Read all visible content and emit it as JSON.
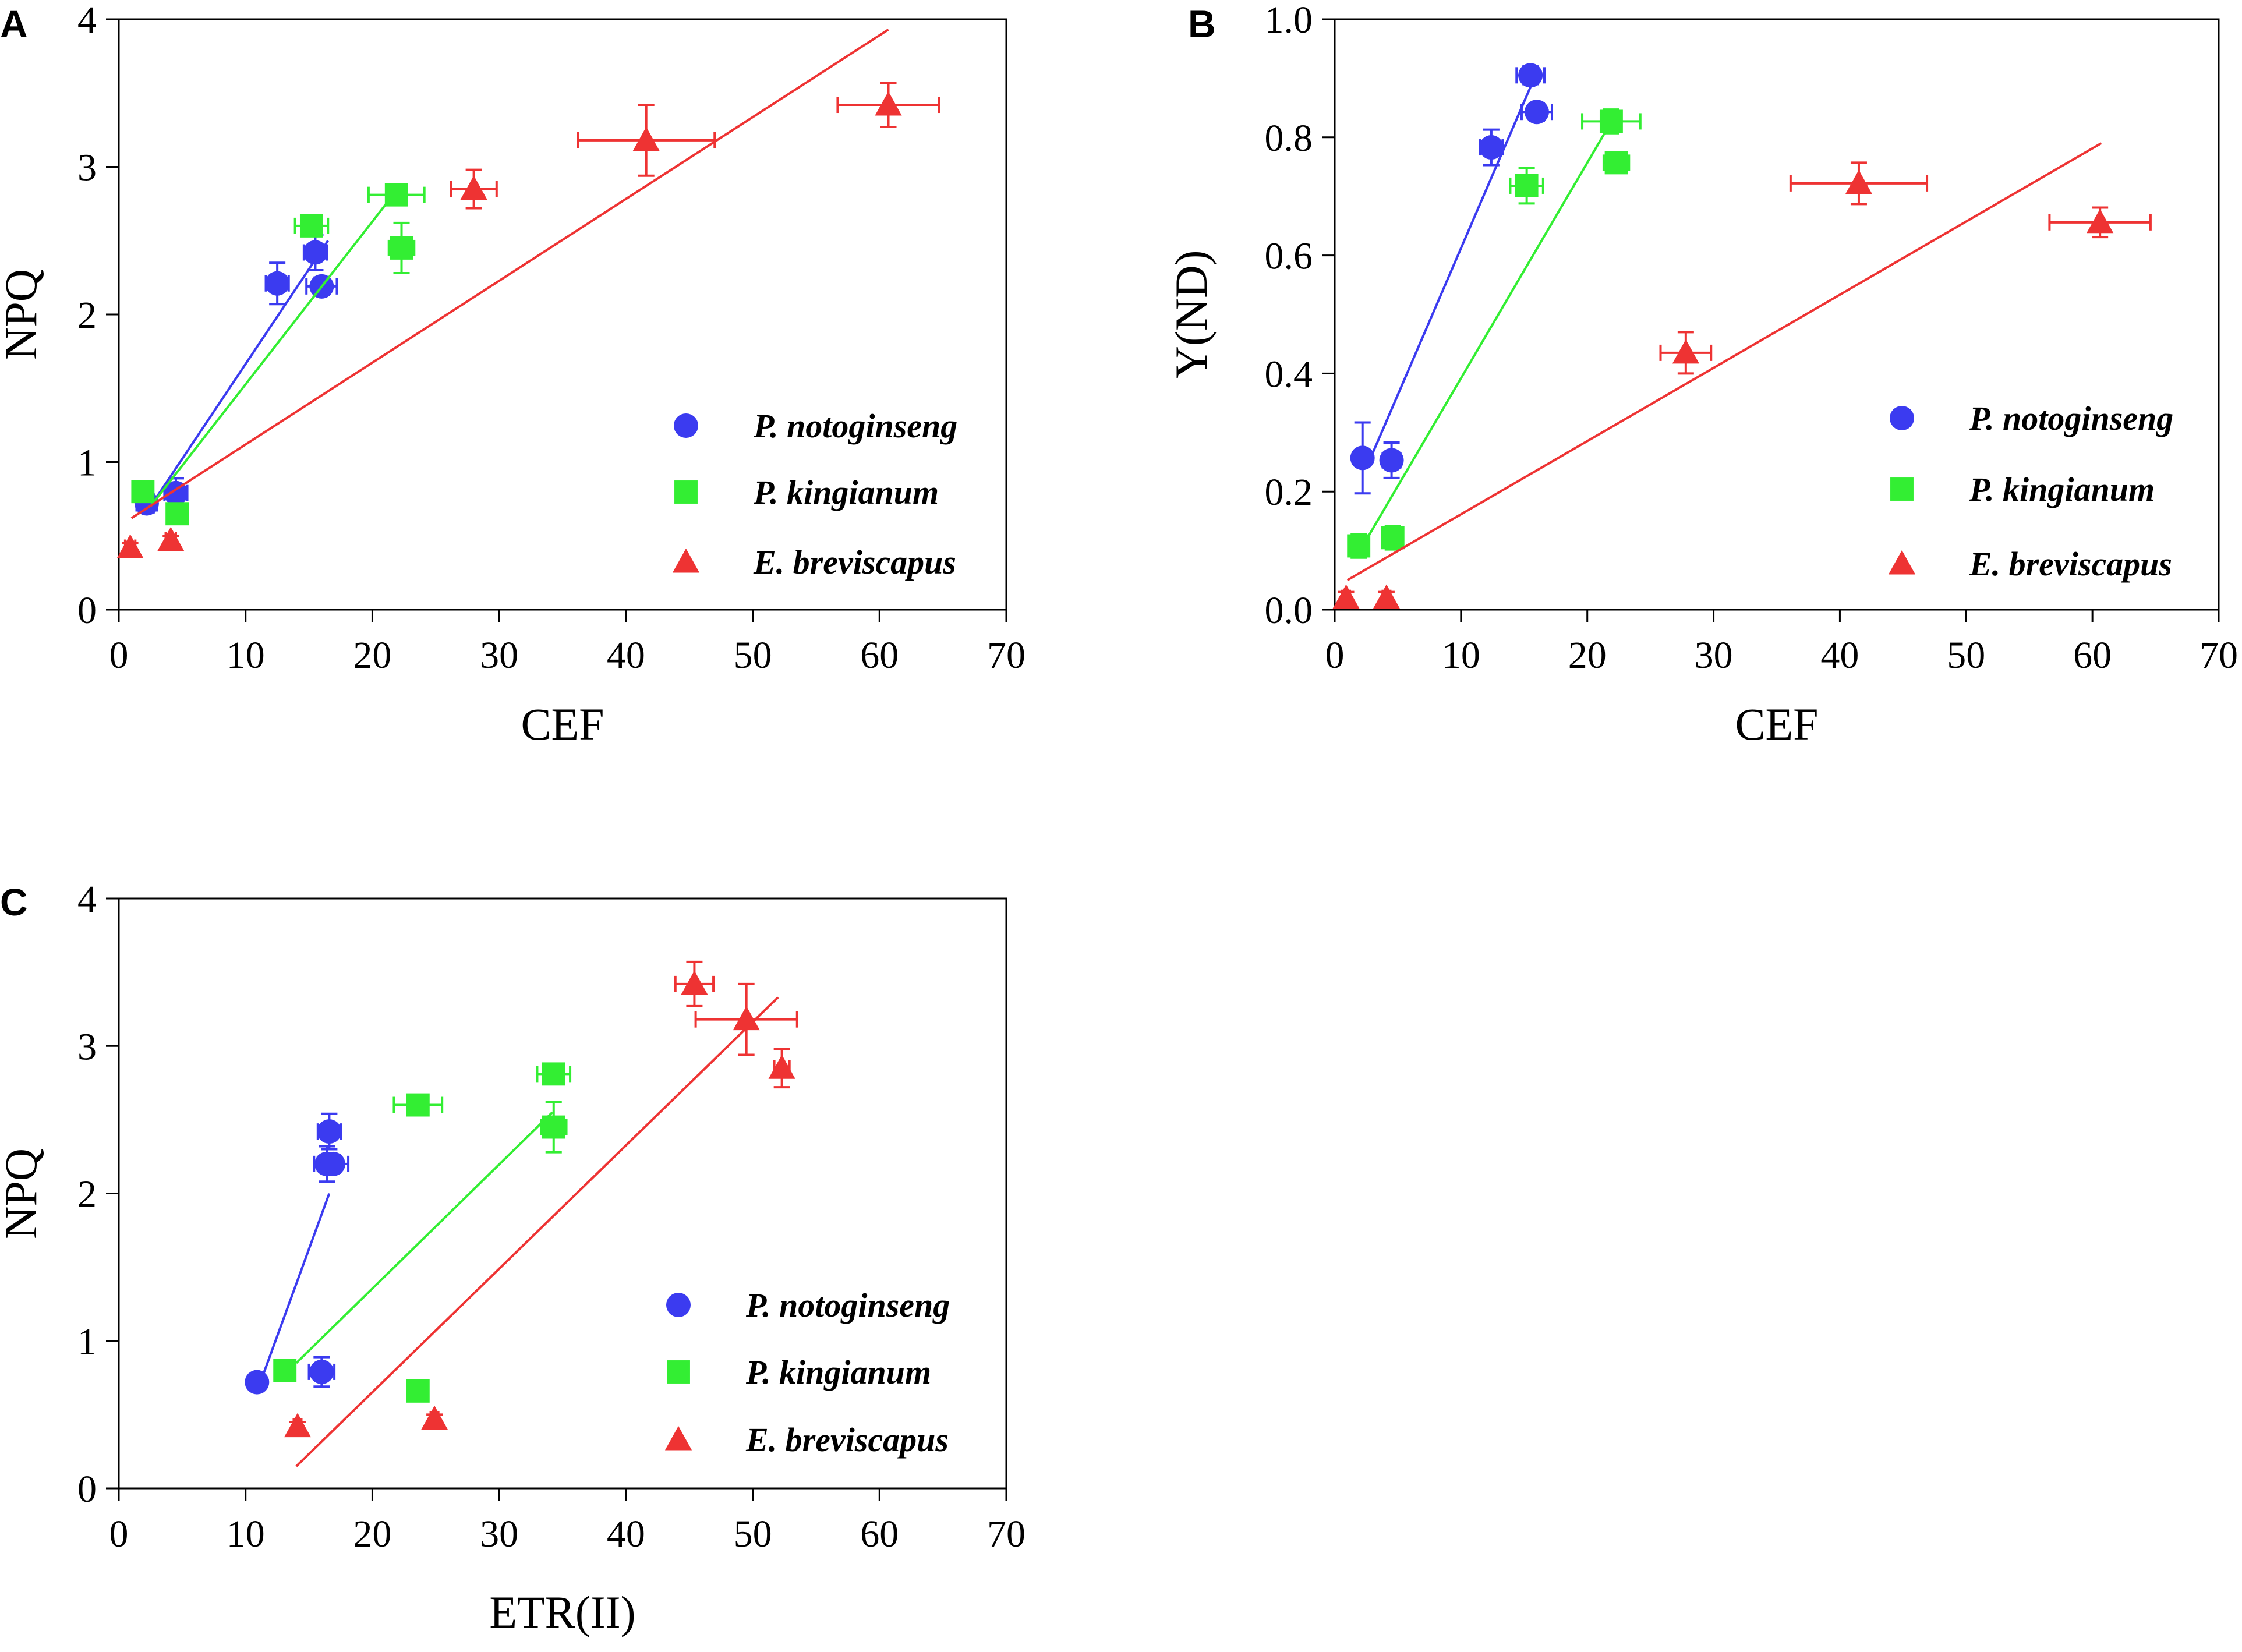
{
  "chart_data": [
    {
      "panel": "A",
      "type": "scatter",
      "xlabel": "CEF",
      "ylabel": "NPQ",
      "xlim": [
        0,
        70
      ],
      "ylim": [
        0,
        4
      ],
      "xticks": [
        0,
        10,
        20,
        30,
        40,
        50,
        60,
        70
      ],
      "yticks": [
        0,
        1,
        2,
        3,
        4
      ],
      "ytick_labels": [
        "0",
        "1",
        "2",
        "3",
        "4"
      ],
      "legend_position": "bottom-right",
      "series": [
        {
          "name": "P. notoginseng",
          "color": "#3b3bf0",
          "marker": "circle",
          "points": [
            {
              "x": 2.2,
              "y": 0.72,
              "xerr": 0.8,
              "yerr": 0.06
            },
            {
              "x": 4.5,
              "y": 0.79,
              "xerr": 0.9,
              "yerr": 0.1
            },
            {
              "x": 12.5,
              "y": 2.21,
              "xerr": 0.9,
              "yerr": 0.14
            },
            {
              "x": 15.5,
              "y": 2.42,
              "xerr": 0.9,
              "yerr": 0.12
            },
            {
              "x": 16.0,
              "y": 2.19,
              "xerr": 1.2,
              "yerr": 0.06
            }
          ],
          "fit": {
            "x": [
              2.5,
              16.5
            ],
            "y": [
              0.7,
              2.5
            ]
          }
        },
        {
          "name": "P. kingianum",
          "color": "#33ee33",
          "marker": "square",
          "points": [
            {
              "x": 1.9,
              "y": 0.8,
              "xerr": 0.6,
              "yerr": 0.05
            },
            {
              "x": 4.6,
              "y": 0.65,
              "xerr": 0.6,
              "yerr": 0.05
            },
            {
              "x": 15.2,
              "y": 2.6,
              "xerr": 1.3,
              "yerr": 0.06
            },
            {
              "x": 21.9,
              "y": 2.81,
              "xerr": 2.2,
              "yerr": 0.05
            },
            {
              "x": 22.3,
              "y": 2.45,
              "xerr": 1.0,
              "yerr": 0.17
            }
          ],
          "fit": {
            "x": [
              2.5,
              22.0
            ],
            "y": [
              0.7,
              2.85
            ]
          }
        },
        {
          "name": "E. breviscapus",
          "color": "#ee3333",
          "marker": "triangle",
          "points": [
            {
              "x": 0.9,
              "y": 0.42,
              "xerr": 0.4,
              "yerr": 0.03
            },
            {
              "x": 4.1,
              "y": 0.47,
              "xerr": 0.4,
              "yerr": 0.03
            },
            {
              "x": 28.0,
              "y": 2.85,
              "xerr": 1.8,
              "yerr": 0.13
            },
            {
              "x": 41.6,
              "y": 3.18,
              "xerr": 5.4,
              "yerr": 0.24
            },
            {
              "x": 60.7,
              "y": 3.42,
              "xerr": 4.0,
              "yerr": 0.15
            }
          ],
          "fit": {
            "x": [
              1.0,
              60.7
            ],
            "y": [
              0.62,
              3.93
            ]
          }
        }
      ]
    },
    {
      "panel": "B",
      "type": "scatter",
      "xlabel": "CEF",
      "ylabel": "Y(ND)",
      "xlim": [
        0,
        70
      ],
      "ylim": [
        0,
        1.0
      ],
      "xticks": [
        0,
        10,
        20,
        30,
        40,
        50,
        60,
        70
      ],
      "yticks": [
        0,
        0.2,
        0.4,
        0.6,
        0.8,
        1.0
      ],
      "ytick_labels": [
        "0.0",
        "0.2",
        "0.4",
        "0.6",
        "0.8",
        "1.0"
      ],
      "legend_position": "bottom-right",
      "series": [
        {
          "name": "P. notoginseng",
          "color": "#3b3bf0",
          "marker": "circle",
          "points": [
            {
              "x": 2.2,
              "y": 0.257,
              "xerr": 0.5,
              "yerr": 0.06
            },
            {
              "x": 4.5,
              "y": 0.253,
              "xerr": 0.7,
              "yerr": 0.03
            },
            {
              "x": 12.4,
              "y": 0.783,
              "xerr": 0.9,
              "yerr": 0.03
            },
            {
              "x": 15.5,
              "y": 0.905,
              "xerr": 1.1,
              "yerr": 0.015
            },
            {
              "x": 16.0,
              "y": 0.843,
              "xerr": 1.2,
              "yerr": 0.015
            }
          ],
          "fit": {
            "x": [
              2.5,
              16.0
            ],
            "y": [
              0.24,
              0.91
            ]
          }
        },
        {
          "name": "P. kingianum",
          "color": "#33ee33",
          "marker": "square",
          "points": [
            {
              "x": 1.9,
              "y": 0.108,
              "xerr": 0.6,
              "yerr": 0.02
            },
            {
              "x": 4.6,
              "y": 0.122,
              "xerr": 0.6,
              "yerr": 0.02
            },
            {
              "x": 15.2,
              "y": 0.718,
              "xerr": 1.3,
              "yerr": 0.03
            },
            {
              "x": 21.9,
              "y": 0.827,
              "xerr": 2.3,
              "yerr": 0.02
            },
            {
              "x": 22.3,
              "y": 0.757,
              "xerr": 1.0,
              "yerr": 0.01
            }
          ],
          "fit": {
            "x": [
              2.0,
              22.0
            ],
            "y": [
              0.1,
              0.83
            ]
          }
        },
        {
          "name": "E. breviscapus",
          "color": "#ee3333",
          "marker": "triangle",
          "points": [
            {
              "x": 0.9,
              "y": 0.02,
              "xerr": 0.3,
              "yerr": 0.01
            },
            {
              "x": 4.1,
              "y": 0.02,
              "xerr": 0.3,
              "yerr": 0.01
            },
            {
              "x": 27.8,
              "y": 0.435,
              "xerr": 2.0,
              "yerr": 0.035
            },
            {
              "x": 41.5,
              "y": 0.722,
              "xerr": 5.4,
              "yerr": 0.035
            },
            {
              "x": 60.6,
              "y": 0.656,
              "xerr": 4.0,
              "yerr": 0.025
            }
          ],
          "fit": {
            "x": [
              1.0,
              60.7
            ],
            "y": [
              0.05,
              0.79
            ]
          }
        }
      ]
    },
    {
      "panel": "C",
      "type": "scatter",
      "xlabel": "ETR(II)",
      "ylabel": "NPQ",
      "xlim": [
        0,
        70
      ],
      "ylim": [
        0,
        4
      ],
      "xticks": [
        0,
        10,
        20,
        30,
        40,
        50,
        60,
        70
      ],
      "yticks": [
        0,
        1,
        2,
        3,
        4
      ],
      "ytick_labels": [
        "0",
        "1",
        "2",
        "3",
        "4"
      ],
      "legend_position": "bottom-right",
      "series": [
        {
          "name": "P. notoginseng",
          "color": "#3b3bf0",
          "marker": "circle",
          "points": [
            {
              "x": 10.9,
              "y": 0.72,
              "xerr": 0.6,
              "yerr": 0.04
            },
            {
              "x": 16.0,
              "y": 0.79,
              "xerr": 1.0,
              "yerr": 0.1
            },
            {
              "x": 16.4,
              "y": 2.2,
              "xerr": 1.0,
              "yerr": 0.12
            },
            {
              "x": 16.6,
              "y": 2.42,
              "xerr": 0.9,
              "yerr": 0.12
            },
            {
              "x": 16.9,
              "y": 2.2,
              "xerr": 1.2,
              "yerr": 0.06
            }
          ],
          "fit": {
            "x": [
              11.0,
              16.6
            ],
            "y": [
              0.68,
              2.0
            ]
          }
        },
        {
          "name": "P. kingianum",
          "color": "#33ee33",
          "marker": "square",
          "points": [
            {
              "x": 13.1,
              "y": 0.8,
              "xerr": 0.6,
              "yerr": 0.04
            },
            {
              "x": 23.6,
              "y": 0.66,
              "xerr": 0.8,
              "yerr": 0.04
            },
            {
              "x": 23.6,
              "y": 2.6,
              "xerr": 1.9,
              "yerr": 0.05
            },
            {
              "x": 34.3,
              "y": 2.81,
              "xerr": 1.3,
              "yerr": 0.05
            },
            {
              "x": 34.3,
              "y": 2.45,
              "xerr": 1.0,
              "yerr": 0.17
            }
          ],
          "fit": {
            "x": [
              14.0,
              34.2
            ],
            "y": [
              0.85,
              2.55
            ]
          }
        },
        {
          "name": "E. breviscapus",
          "color": "#ee3333",
          "marker": "triangle",
          "points": [
            {
              "x": 14.1,
              "y": 0.42,
              "xerr": 0.3,
              "yerr": 0.03
            },
            {
              "x": 24.9,
              "y": 0.47,
              "xerr": 0.3,
              "yerr": 0.03
            },
            {
              "x": 45.4,
              "y": 3.42,
              "xerr": 1.5,
              "yerr": 0.15
            },
            {
              "x": 49.5,
              "y": 3.18,
              "xerr": 4.0,
              "yerr": 0.24
            },
            {
              "x": 52.3,
              "y": 2.85,
              "xerr": 0.6,
              "yerr": 0.13
            }
          ],
          "fit": {
            "x": [
              14.0,
              52.0
            ],
            "y": [
              0.15,
              3.33
            ]
          }
        }
      ]
    }
  ]
}
